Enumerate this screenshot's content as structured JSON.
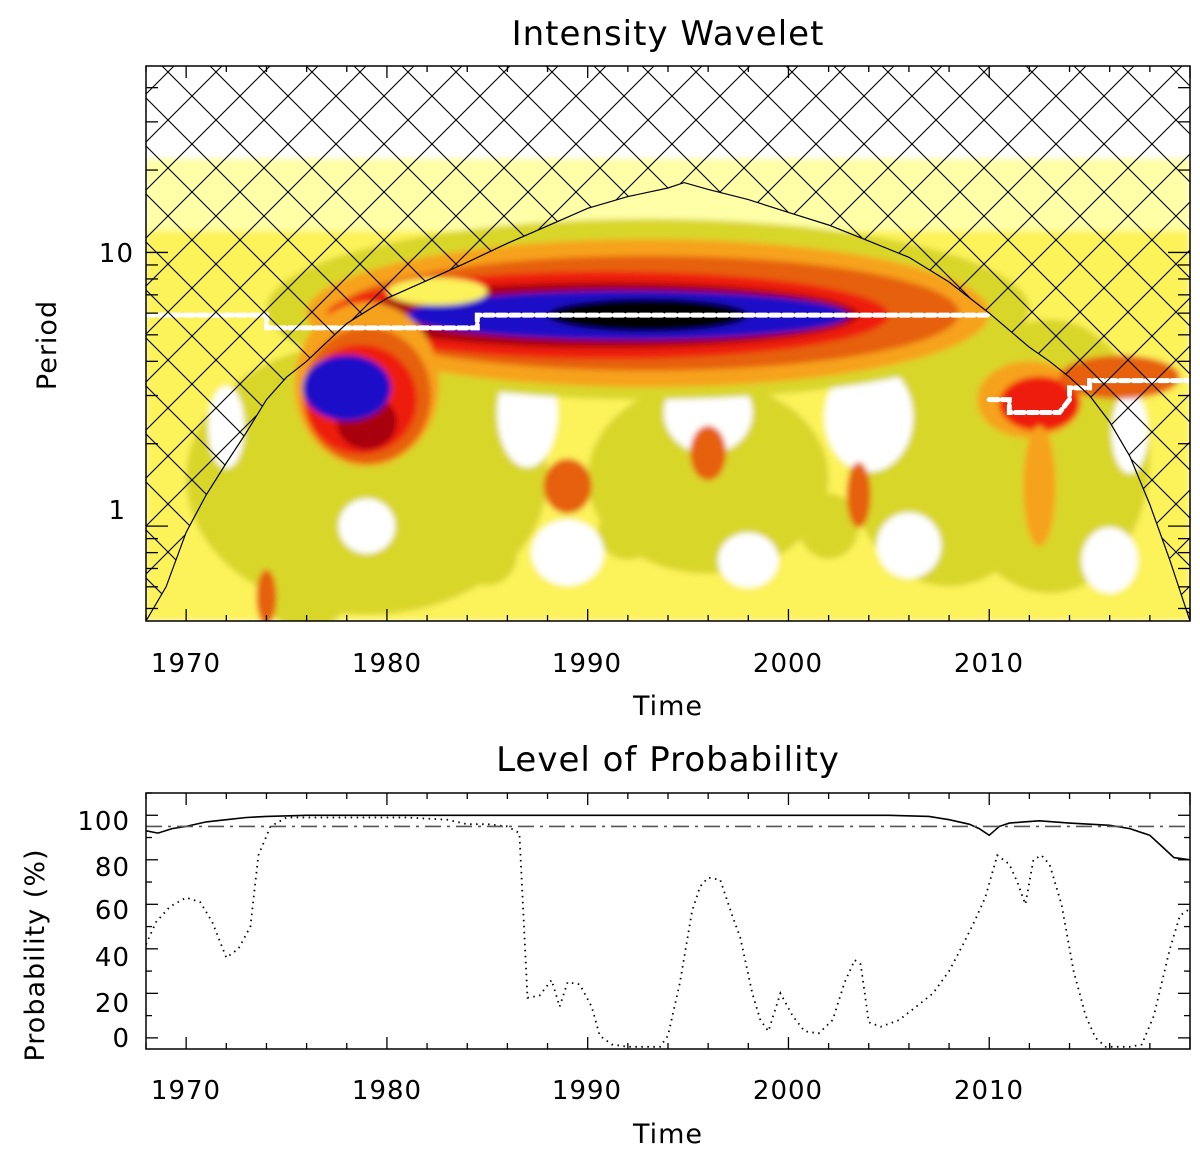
{
  "chart_data": [
    {
      "type": "heatmap",
      "title": "Intensity Wavelet",
      "xlabel": "Time",
      "ylabel": "Period",
      "xlim": [
        1968,
        2020
      ],
      "ylim": [
        0.45,
        48
      ],
      "yscale": "log",
      "xticks": [
        "1970",
        "1980",
        "1990",
        "2000",
        "2010"
      ],
      "yticks": [
        "1",
        "10"
      ],
      "colors": {
        "c1": "#ffffa8",
        "c2": "#fcf25a",
        "c3": "#d9d62a",
        "c4": "#f7a21a",
        "c5": "#e6600c",
        "c6": "#ee1c10",
        "c7": "#a8000a",
        "c8": "#1e0ac8",
        "c9": "#000000"
      },
      "cone_of_influence": {
        "x": [
          1968,
          1969,
          1970,
          1971,
          1972,
          1973,
          1974,
          1975,
          1976,
          1977,
          1978,
          1980,
          1982,
          1984,
          1986,
          1988,
          1990,
          1992,
          1994,
          1994.8,
          1996,
          1998,
          2000,
          2002,
          2004,
          2006,
          2008,
          2010,
          2012,
          2013,
          2014,
          2015,
          2016,
          2017,
          2018,
          2019,
          2020
        ],
        "period": [
          0.45,
          0.6,
          0.95,
          1.3,
          1.7,
          2.2,
          2.9,
          3.5,
          4.0,
          4.7,
          5.5,
          6.8,
          7.9,
          9.2,
          10.8,
          12.5,
          14.5,
          16.0,
          17.2,
          18.0,
          17.0,
          15.6,
          14.0,
          12.6,
          11.0,
          9.6,
          7.8,
          6.0,
          4.5,
          4.0,
          3.5,
          3.0,
          2.4,
          1.8,
          1.2,
          0.75,
          0.45
        ]
      },
      "global_max_ridge": {
        "x": [
          1968,
          1974,
          1974,
          1984.5,
          1984.5,
          2010
        ],
        "period": [
          5.9,
          5.9,
          5.3,
          5.3,
          5.9,
          5.9
        ]
      },
      "secondary_ridge": {
        "x": [
          2010,
          2011,
          2011,
          2013.5,
          2014,
          2014,
          2015,
          2015,
          2020
        ],
        "period": [
          2.9,
          2.9,
          2.6,
          2.6,
          2.9,
          3.2,
          3.2,
          3.4,
          3.4
        ]
      }
    },
    {
      "type": "line",
      "title": "Level of Probability",
      "xlabel": "Time",
      "ylabel": "Probability (%)",
      "xlim": [
        1968,
        2020
      ],
      "ylim": [
        -5,
        110
      ],
      "xticks": [
        "1970",
        "1980",
        "1990",
        "2000",
        "2010"
      ],
      "yticks": [
        "0",
        "20",
        "40",
        "60",
        "80",
        "100"
      ],
      "series": [
        {
          "style": "solid",
          "x": [
            1968,
            1968.6,
            1969.3,
            1970,
            1971,
            1972,
            1973,
            1974,
            1976,
            1980,
            1985,
            1990,
            1995,
            2000,
            2005,
            2007,
            2008,
            2009,
            2009.5,
            2010,
            2010.5,
            2011,
            2011.7,
            2012.5,
            2014,
            2016,
            2017,
            2018,
            2018.6,
            2019.2,
            2020
          ],
          "values": [
            93,
            92,
            94,
            95,
            97,
            98,
            99,
            99.5,
            100,
            100,
            100,
            100,
            100,
            100,
            100,
            99.5,
            98,
            96,
            94,
            91,
            95,
            96.5,
            97,
            97.5,
            96.5,
            95.5,
            94,
            91,
            86,
            81,
            80
          ]
        },
        {
          "style": "dotted",
          "x": [
            1968,
            1968.5,
            1969.2,
            1970,
            1970.7,
            1971.3,
            1972,
            1972.6,
            1973.2,
            1973.6,
            1974.2,
            1975,
            1978,
            1981,
            1983,
            1984,
            1985,
            1986,
            1986.6,
            1987,
            1987.6,
            1988.2,
            1988.6,
            1989,
            1989.6,
            1990.2,
            1990.6,
            1991.2,
            1992,
            1993,
            1993.6,
            1994,
            1994.6,
            1995.2,
            1995.6,
            1996,
            1996.6,
            1997.2,
            1997.6,
            1998.2,
            1998.6,
            1999,
            1999.6,
            2000.2,
            2000.8,
            2001.5,
            2002.2,
            2002.8,
            2003.3,
            2003.6,
            2004,
            2004.6,
            2005.5,
            2006.5,
            2007.2,
            2008,
            2008.7,
            2009.3,
            2009.8,
            2010.4,
            2011,
            2011.4,
            2011.8,
            2012.2,
            2012.6,
            2013,
            2013.6,
            2014.2,
            2014.8,
            2015.3,
            2015.8,
            2016.4,
            2017,
            2017.6,
            2018.2,
            2018.6,
            2019,
            2019.5,
            2020
          ],
          "values": [
            42,
            52,
            59,
            63,
            61,
            52,
            36,
            40,
            50,
            82,
            95,
            99,
            99,
            99,
            98,
            96,
            96,
            95,
            92,
            18,
            19,
            26,
            14,
            25,
            24,
            14,
            1,
            -3,
            -4,
            -4,
            -4,
            1,
            25,
            57,
            68,
            72,
            71,
            55,
            45,
            20,
            8,
            3,
            20,
            10,
            3,
            2,
            8,
            25,
            35,
            33,
            7,
            5,
            8,
            15,
            20,
            30,
            42,
            53,
            63,
            82,
            78,
            70,
            60,
            80,
            82,
            78,
            60,
            30,
            10,
            0,
            -4,
            -4,
            -4,
            -3,
            10,
            25,
            40,
            55,
            58
          ]
        },
        {
          "style": "dash-dot",
          "x": [
            1968,
            2020
          ],
          "values": [
            95,
            95
          ]
        }
      ]
    }
  ]
}
